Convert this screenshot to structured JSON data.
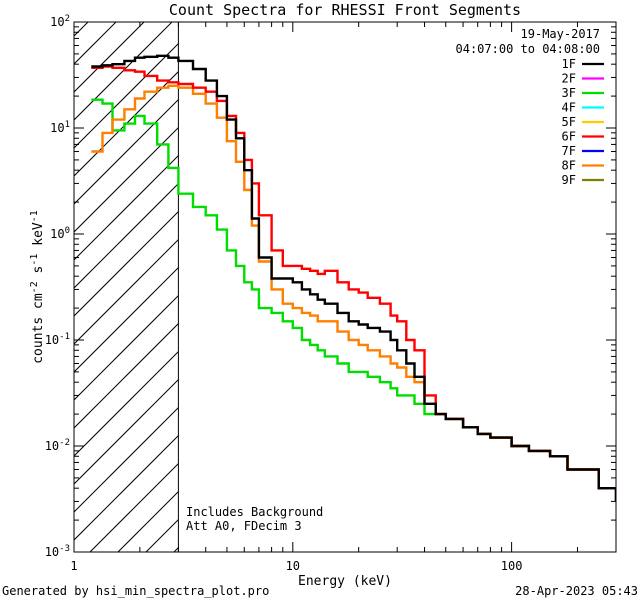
{
  "chart_data": {
    "type": "line",
    "title": "Count Spectra for RHESSI Front Segments",
    "xlabel": "Energy (keV)",
    "ylabel_parts": [
      "counts cm",
      "-2",
      " s",
      "-1",
      " keV",
      "-1"
    ],
    "x_scale": "log",
    "y_scale": "log",
    "xlim": [
      1,
      300
    ],
    "ylim": [
      0.001,
      100
    ],
    "x_ticks": [
      {
        "value": 1,
        "label": "1"
      },
      {
        "value": 10,
        "label": "10"
      },
      {
        "value": 100,
        "label": "100"
      }
    ],
    "y_ticks": [
      {
        "exp": -3,
        "base": "10",
        "sup": "-3"
      },
      {
        "exp": -2,
        "base": "10",
        "sup": "-2"
      },
      {
        "exp": -1,
        "base": "10",
        "sup": "-1"
      },
      {
        "exp": 0,
        "base": "10",
        "sup": "0"
      },
      {
        "exp": 1,
        "base": "10",
        "sup": "1"
      },
      {
        "exp": 2,
        "base": "10",
        "sup": "2"
      }
    ],
    "hatch_region": {
      "x_from": 1,
      "x_to": 3
    },
    "date": "19-May-2017",
    "time_range": "04:07:00 to 04:08:00",
    "legend": [
      {
        "label": "1F",
        "color": "#000000"
      },
      {
        "label": "2F",
        "color": "#ff00ff"
      },
      {
        "label": "3F",
        "color": "#00dd00"
      },
      {
        "label": "4F",
        "color": "#00ffff"
      },
      {
        "label": "5F",
        "color": "#ffcc00"
      },
      {
        "label": "6F",
        "color": "#ff0000"
      },
      {
        "label": "7F",
        "color": "#0000ff"
      },
      {
        "label": "8F",
        "color": "#ff7f00"
      },
      {
        "label": "9F",
        "color": "#808000"
      }
    ],
    "annotations": [
      "Includes Background",
      "Att A0, FDecim 3"
    ],
    "series": [
      {
        "name": "3F",
        "color": "#00dd00",
        "x": [
          1.2,
          1.35,
          1.5,
          1.7,
          1.9,
          2.1,
          2.4,
          2.7,
          3.0,
          3.5,
          4.0,
          4.5,
          5.0,
          5.5,
          6.0,
          6.5,
          7.0,
          8.0,
          9.0,
          10.0,
          11.0,
          12.0,
          13.0,
          14.0,
          16.0,
          18.0,
          20.0,
          22.0,
          25.0,
          28.0,
          30.0,
          33.0,
          36.0,
          40.0,
          45.0,
          50.0,
          60.0,
          70.0,
          80.0,
          100.0,
          120.0,
          150.0,
          180.0,
          200.0,
          250.0,
          300.0
        ],
        "y": [
          18.5,
          17.0,
          9.5,
          11.0,
          13.0,
          11.0,
          7.0,
          4.2,
          2.4,
          1.8,
          1.5,
          1.1,
          0.7,
          0.5,
          0.35,
          0.3,
          0.2,
          0.18,
          0.15,
          0.13,
          0.1,
          0.09,
          0.08,
          0.07,
          0.06,
          0.05,
          0.05,
          0.045,
          0.04,
          0.035,
          0.03,
          0.03,
          0.025,
          0.02,
          0.02,
          0.018,
          0.015,
          0.013,
          0.012,
          0.01,
          0.009,
          0.008,
          0.006,
          0.006,
          0.004,
          0.003
        ]
      },
      {
        "name": "8F",
        "color": "#ff7f00",
        "x": [
          1.2,
          1.35,
          1.5,
          1.7,
          1.9,
          2.1,
          2.4,
          2.7,
          3.0,
          3.5,
          4.0,
          4.5,
          5.0,
          5.5,
          6.0,
          6.5,
          7.0,
          8.0,
          9.0,
          10.0,
          11.0,
          12.0,
          13.0,
          14.0,
          16.0,
          18.0,
          20.0,
          22.0,
          25.0,
          28.0,
          30.0,
          33.0,
          36.0,
          40.0,
          45.0,
          50.0,
          60.0,
          70.0,
          80.0,
          100.0,
          120.0,
          150.0,
          180.0,
          200.0,
          250.0,
          300.0
        ],
        "y": [
          6.0,
          9.0,
          12.0,
          15.0,
          19.0,
          22.0,
          24.0,
          25.0,
          24.0,
          21.0,
          17.0,
          12.5,
          7.5,
          4.8,
          2.6,
          1.2,
          0.55,
          0.3,
          0.22,
          0.2,
          0.18,
          0.17,
          0.15,
          0.15,
          0.12,
          0.1,
          0.09,
          0.08,
          0.07,
          0.06,
          0.055,
          0.045,
          0.04,
          0.025,
          0.02,
          0.018,
          0.015,
          0.013,
          0.012,
          0.01,
          0.009,
          0.008,
          0.006,
          0.006,
          0.004,
          0.003
        ]
      },
      {
        "name": "6F",
        "color": "#ff0000",
        "x": [
          1.2,
          1.35,
          1.5,
          1.7,
          1.9,
          2.1,
          2.4,
          2.7,
          3.0,
          3.5,
          4.0,
          4.5,
          5.0,
          5.5,
          6.0,
          6.5,
          7.0,
          8.0,
          9.0,
          10.0,
          11.0,
          12.0,
          13.0,
          14.0,
          16.0,
          18.0,
          20.0,
          22.0,
          25.0,
          28.0,
          30.0,
          33.0,
          36.0,
          40.0,
          45.0,
          50.0,
          60.0,
          70.0,
          80.0,
          100.0,
          120.0,
          150.0,
          180.0,
          200.0,
          250.0,
          300.0
        ],
        "y": [
          37.0,
          38.0,
          37.0,
          35.0,
          34.0,
          31.0,
          28.0,
          27.0,
          26.0,
          24.0,
          22.0,
          18.0,
          13.0,
          9.0,
          5.0,
          3.0,
          1.5,
          0.7,
          0.5,
          0.5,
          0.47,
          0.45,
          0.42,
          0.45,
          0.35,
          0.3,
          0.28,
          0.25,
          0.22,
          0.17,
          0.15,
          0.1,
          0.08,
          0.03,
          0.02,
          0.018,
          0.015,
          0.013,
          0.012,
          0.01,
          0.009,
          0.008,
          0.006,
          0.006,
          0.004,
          0.003
        ]
      },
      {
        "name": "1F",
        "color": "#000000",
        "x": [
          1.2,
          1.35,
          1.5,
          1.7,
          1.9,
          2.1,
          2.4,
          2.7,
          3.0,
          3.5,
          4.0,
          4.5,
          5.0,
          5.5,
          6.0,
          6.5,
          7.0,
          8.0,
          9.0,
          10.0,
          11.0,
          12.0,
          13.0,
          14.0,
          16.0,
          18.0,
          20.0,
          22.0,
          25.0,
          28.0,
          30.0,
          33.0,
          36.0,
          40.0,
          45.0,
          50.0,
          60.0,
          70.0,
          80.0,
          100.0,
          120.0,
          150.0,
          180.0,
          200.0,
          250.0,
          300.0
        ],
        "y": [
          38.0,
          39.0,
          40.0,
          43.0,
          46.0,
          47.0,
          48.0,
          46.0,
          43.0,
          36.0,
          28.0,
          20.0,
          12.0,
          8.0,
          4.0,
          1.4,
          0.6,
          0.38,
          0.38,
          0.35,
          0.3,
          0.27,
          0.24,
          0.22,
          0.18,
          0.15,
          0.14,
          0.13,
          0.12,
          0.1,
          0.08,
          0.06,
          0.045,
          0.025,
          0.02,
          0.018,
          0.015,
          0.013,
          0.012,
          0.01,
          0.009,
          0.008,
          0.006,
          0.006,
          0.004,
          0.003
        ]
      }
    ]
  },
  "footer": {
    "generated_by": "Generated by hsi_min_spectra_plot.pro",
    "timestamp": "28-Apr-2023 05:43"
  }
}
